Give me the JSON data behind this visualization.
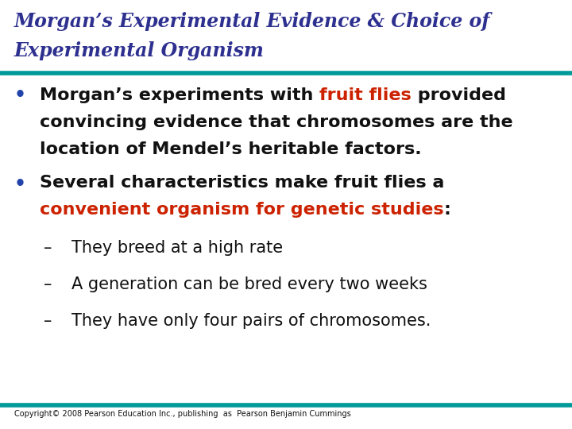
{
  "title_line1": "Morgan’s Experimental Evidence & Choice of",
  "title_line2": "Experimental Organism",
  "title_color": "#2E3090",
  "teal_color": "#009999",
  "bg_color": "#FFFFFF",
  "bullet_color": "#2244aa",
  "body_color": "#111111",
  "red_color": "#CC2200",
  "copyright": "Copyright© 2008 Pearson Education Inc., publishing  as  Pearson Benjamin Cummings",
  "sub1": "They breed at a high rate",
  "sub2": "A generation can be bred every two weeks",
  "sub3": "They have only four pairs of chromosomes."
}
